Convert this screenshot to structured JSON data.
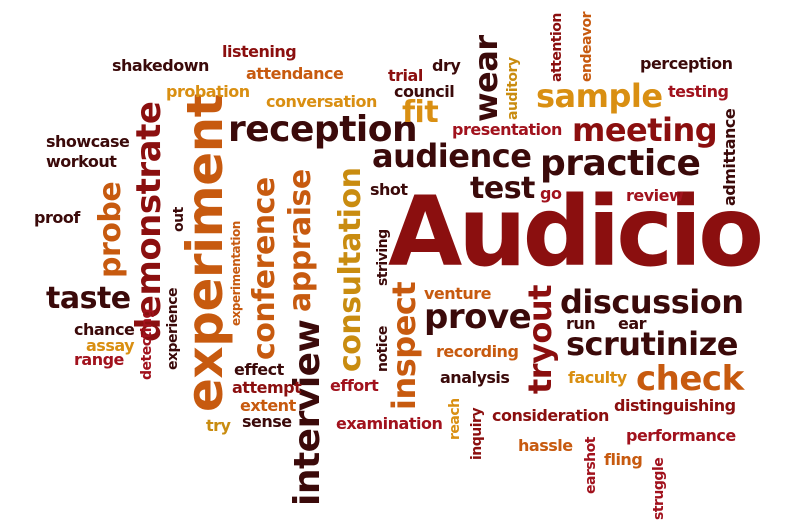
{
  "colors": {
    "dark": "#3b0a0a",
    "red": "#8b0f0f",
    "crimson": "#a1121d",
    "orange": "#c75a0f",
    "amber": "#d98f12",
    "gold": "#c98c10"
  },
  "words": [
    {
      "text": "Audicio"
    },
    {
      "text": "experiment"
    },
    {
      "text": "demonstrate"
    },
    {
      "text": "interview"
    },
    {
      "text": "reception"
    },
    {
      "text": "audience"
    },
    {
      "text": "practice"
    },
    {
      "text": "discussion"
    },
    {
      "text": "scrutinize"
    },
    {
      "text": "meeting"
    },
    {
      "text": "sample"
    },
    {
      "text": "check"
    },
    {
      "text": "prove"
    },
    {
      "text": "test"
    },
    {
      "text": "taste"
    },
    {
      "text": "fit"
    },
    {
      "text": "wear"
    },
    {
      "text": "tryout"
    },
    {
      "text": "inspect"
    },
    {
      "text": "consultation"
    },
    {
      "text": "conference"
    },
    {
      "text": "appraise"
    },
    {
      "text": "probe"
    },
    {
      "text": "shakedown"
    },
    {
      "text": "listening"
    },
    {
      "text": "attendance"
    },
    {
      "text": "probation"
    },
    {
      "text": "conversation"
    },
    {
      "text": "trial"
    },
    {
      "text": "dry"
    },
    {
      "text": "council"
    },
    {
      "text": "auditory"
    },
    {
      "text": "attention"
    },
    {
      "text": "endeavor"
    },
    {
      "text": "perception"
    },
    {
      "text": "testing"
    },
    {
      "text": "presentation"
    },
    {
      "text": "admittance"
    },
    {
      "text": "review"
    },
    {
      "text": "go"
    },
    {
      "text": "shot"
    },
    {
      "text": "showcase"
    },
    {
      "text": "workout"
    },
    {
      "text": "proof"
    },
    {
      "text": "out"
    },
    {
      "text": "experimentation"
    },
    {
      "text": "striving"
    },
    {
      "text": "venture"
    },
    {
      "text": "run"
    },
    {
      "text": "ear"
    },
    {
      "text": "chance"
    },
    {
      "text": "assay"
    },
    {
      "text": "range"
    },
    {
      "text": "detecting"
    },
    {
      "text": "experience"
    },
    {
      "text": "effect"
    },
    {
      "text": "attempt"
    },
    {
      "text": "extent"
    },
    {
      "text": "try"
    },
    {
      "text": "sense"
    },
    {
      "text": "effort"
    },
    {
      "text": "notice"
    },
    {
      "text": "recording"
    },
    {
      "text": "analysis"
    },
    {
      "text": "examination"
    },
    {
      "text": "reach"
    },
    {
      "text": "inquiry"
    },
    {
      "text": "consideration"
    },
    {
      "text": "faculty"
    },
    {
      "text": "distinguishing"
    },
    {
      "text": "hassle"
    },
    {
      "text": "earshot"
    },
    {
      "text": "performance"
    },
    {
      "text": "fling"
    },
    {
      "text": "struggle"
    }
  ]
}
